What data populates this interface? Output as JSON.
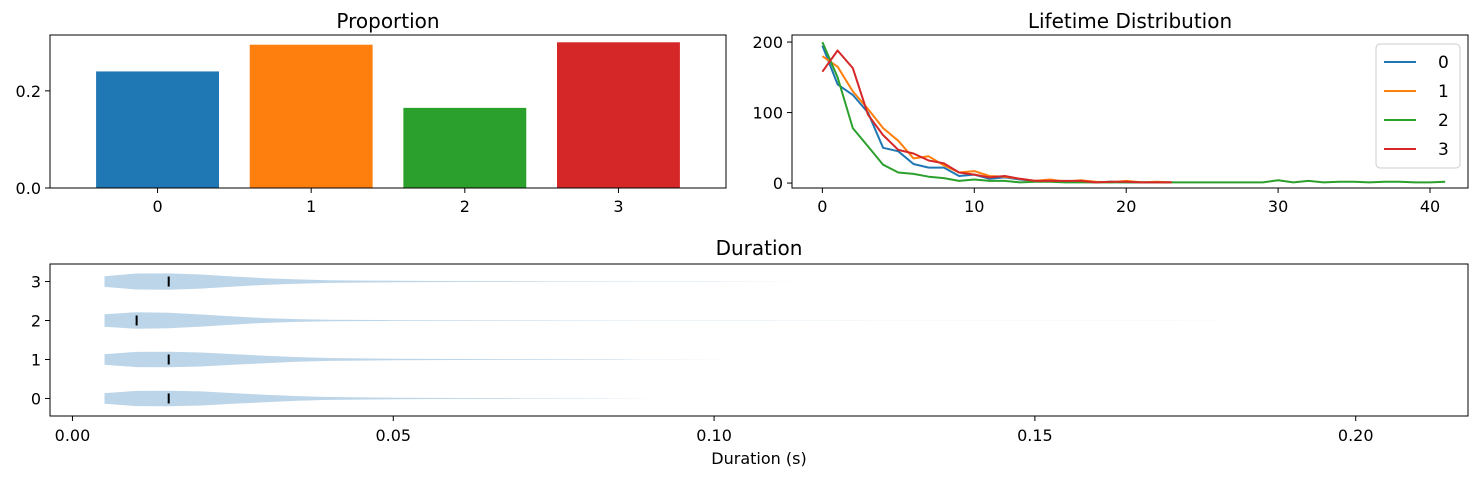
{
  "chart_data": [
    {
      "type": "bar",
      "title": "Proportion",
      "categories": [
        "0",
        "1",
        "2",
        "3"
      ],
      "values": [
        0.24,
        0.295,
        0.165,
        0.3
      ],
      "colors": [
        "#1f77b4",
        "#ff7f0e",
        "#2ca02c",
        "#d62728"
      ],
      "ylim": [
        0,
        0.315
      ],
      "yticks": [
        0.0,
        0.2
      ],
      "ytick_labels": [
        "0.0",
        "0.2"
      ]
    },
    {
      "type": "line",
      "title": "Lifetime Distribution",
      "xlim": [
        -2,
        42.5
      ],
      "ylim": [
        -7,
        210
      ],
      "xticks": [
        0,
        10,
        20,
        30,
        40
      ],
      "xtick_labels": [
        "0",
        "10",
        "20",
        "30",
        "40"
      ],
      "yticks": [
        0,
        100,
        200
      ],
      "ytick_labels": [
        "0",
        "100",
        "200"
      ],
      "legend_position": "top-right",
      "series": [
        {
          "name": "0",
          "color": "#1f77b4",
          "x": [
            0,
            1,
            2,
            3,
            4,
            5,
            6,
            7,
            8,
            9,
            10,
            11,
            12,
            13,
            14,
            15,
            16,
            17,
            18,
            19,
            20,
            21,
            22,
            23
          ],
          "values": [
            195,
            140,
            125,
            100,
            50,
            45,
            27,
            22,
            22,
            10,
            12,
            6,
            8,
            5,
            3,
            4,
            2,
            2,
            1,
            2,
            1,
            1,
            1,
            1
          ]
        },
        {
          "name": "1",
          "color": "#ff7f0e",
          "x": [
            0,
            1,
            2,
            3,
            4,
            5,
            6,
            7,
            8,
            9,
            10,
            11,
            12,
            13,
            14,
            15,
            16,
            17,
            18,
            19,
            20,
            21,
            22,
            23
          ],
          "values": [
            180,
            165,
            130,
            105,
            78,
            60,
            35,
            38,
            25,
            15,
            17,
            10,
            9,
            6,
            3,
            5,
            2,
            4,
            2,
            1,
            3,
            1,
            2,
            1
          ]
        },
        {
          "name": "2",
          "color": "#2ca02c",
          "x": [
            0,
            1,
            2,
            3,
            4,
            5,
            6,
            7,
            8,
            9,
            10,
            11,
            12,
            13,
            14,
            15,
            16,
            17,
            18,
            19,
            20,
            21,
            22,
            23,
            24,
            25,
            26,
            27,
            28,
            29,
            30,
            31,
            32,
            33,
            34,
            35,
            36,
            37,
            38,
            39,
            40,
            41
          ],
          "values": [
            200,
            150,
            78,
            52,
            26,
            15,
            13,
            9,
            7,
            3,
            5,
            3,
            3,
            1,
            2,
            2,
            1,
            1,
            1,
            1,
            1,
            1,
            1,
            1,
            1,
            1,
            1,
            1,
            1,
            1,
            4,
            1,
            3,
            1,
            2,
            2,
            1,
            2,
            2,
            1,
            1,
            2
          ]
        },
        {
          "name": "3",
          "color": "#d62728",
          "x": [
            0,
            1,
            2,
            3,
            4,
            5,
            6,
            7,
            8,
            9,
            10,
            11,
            12,
            13,
            14,
            15,
            16,
            17,
            18,
            19,
            20,
            21,
            22,
            23
          ],
          "values": [
            158,
            188,
            163,
            97,
            68,
            47,
            42,
            32,
            28,
            15,
            12,
            8,
            10,
            6,
            3,
            3,
            3,
            3,
            1,
            2,
            2,
            1,
            1,
            1
          ]
        }
      ]
    },
    {
      "type": "violin",
      "title": "Duration",
      "xlabel": "Duration (s)",
      "xlim": [
        -0.0035,
        0.2175
      ],
      "xticks": [
        0.0,
        0.05,
        0.1,
        0.15,
        0.2
      ],
      "xtick_labels": [
        "0.00",
        "0.05",
        "0.10",
        "0.15",
        "0.20"
      ],
      "categories": [
        "0",
        "1",
        "2",
        "3"
      ],
      "fill_color": "#bcd5e8",
      "median_color": "#000000",
      "series": [
        {
          "name": "0",
          "median": 0.015,
          "min": 0.005,
          "max": 0.092,
          "width_profile": [
            [
              0.005,
              0.55
            ],
            [
              0.01,
              0.78
            ],
            [
              0.015,
              0.8
            ],
            [
              0.02,
              0.72
            ],
            [
              0.025,
              0.55
            ],
            [
              0.03,
              0.38
            ],
            [
              0.035,
              0.24
            ],
            [
              0.04,
              0.15
            ],
            [
              0.05,
              0.08
            ],
            [
              0.06,
              0.05
            ],
            [
              0.07,
              0.03
            ],
            [
              0.08,
              0.015
            ],
            [
              0.092,
              0.0
            ]
          ]
        },
        {
          "name": "1",
          "median": 0.015,
          "min": 0.005,
          "max": 0.105,
          "width_profile": [
            [
              0.005,
              0.55
            ],
            [
              0.01,
              0.78
            ],
            [
              0.015,
              0.8
            ],
            [
              0.02,
              0.72
            ],
            [
              0.025,
              0.55
            ],
            [
              0.03,
              0.38
            ],
            [
              0.035,
              0.24
            ],
            [
              0.04,
              0.15
            ],
            [
              0.05,
              0.08
            ],
            [
              0.06,
              0.05
            ],
            [
              0.07,
              0.04
            ],
            [
              0.085,
              0.02
            ],
            [
              0.105,
              0.0
            ]
          ]
        },
        {
          "name": "2",
          "median": 0.01,
          "min": 0.005,
          "max": 0.205,
          "width_profile": [
            [
              0.005,
              0.65
            ],
            [
              0.01,
              0.85
            ],
            [
              0.015,
              0.8
            ],
            [
              0.02,
              0.62
            ],
            [
              0.025,
              0.42
            ],
            [
              0.03,
              0.25
            ],
            [
              0.035,
              0.14
            ],
            [
              0.04,
              0.08
            ],
            [
              0.05,
              0.04
            ],
            [
              0.07,
              0.02
            ],
            [
              0.1,
              0.012
            ],
            [
              0.15,
              0.006
            ],
            [
              0.205,
              0.0
            ]
          ]
        },
        {
          "name": "3",
          "median": 0.015,
          "min": 0.005,
          "max": 0.115,
          "width_profile": [
            [
              0.005,
              0.55
            ],
            [
              0.01,
              0.82
            ],
            [
              0.015,
              0.84
            ],
            [
              0.02,
              0.72
            ],
            [
              0.025,
              0.52
            ],
            [
              0.03,
              0.34
            ],
            [
              0.035,
              0.22
            ],
            [
              0.04,
              0.14
            ],
            [
              0.05,
              0.08
            ],
            [
              0.06,
              0.05
            ],
            [
              0.075,
              0.03
            ],
            [
              0.095,
              0.015
            ],
            [
              0.115,
              0.0
            ]
          ]
        }
      ]
    }
  ]
}
